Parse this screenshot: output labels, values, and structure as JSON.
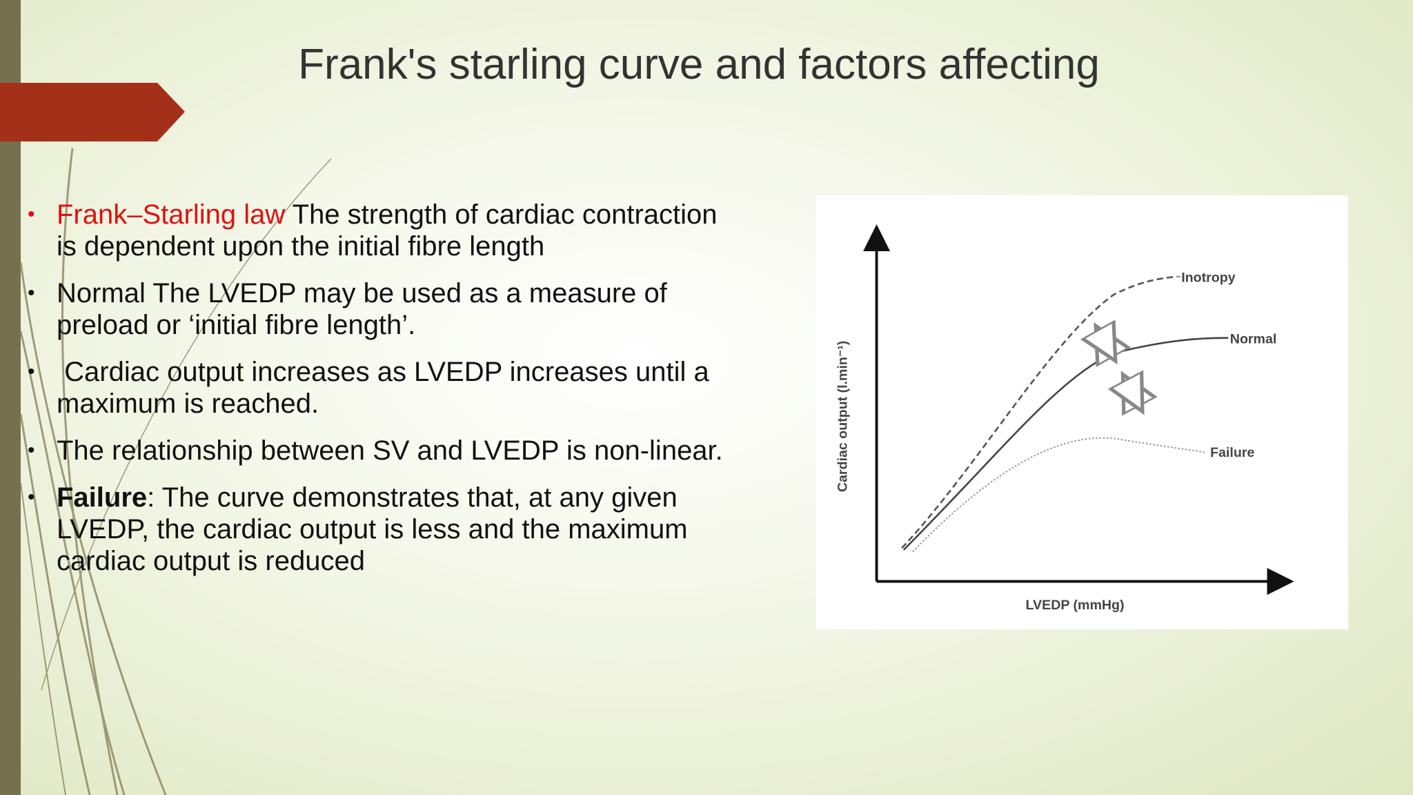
{
  "header": {
    "title": "Frank's starling curve and factors affecting"
  },
  "bullets": [
    {
      "lead": "Frank–Starling law",
      "text": " The strength of cardiac contraction is dependent upon the initial fibre length"
    },
    {
      "text": "Normal The LVEDP may be used as a measure of preload or ‘initial fibre length’."
    },
    {
      "text": " Cardiac output increases as LVEDP increases until a maximum is reached."
    },
    {
      "text": "The relationship between SV and LVEDP is non-linear."
    },
    {
      "lead": "Failure",
      "text": ": The curve demonstrates that, at any given LVEDP, the cardiac output is less and the maximum cardiac output is reduced"
    }
  ],
  "figure": {
    "y_label": "Cardiac output (l.min⁻¹)",
    "x_label": "LVEDP (mmHg)",
    "curves": [
      "Inotropy",
      "Normal",
      "Failure"
    ]
  }
}
